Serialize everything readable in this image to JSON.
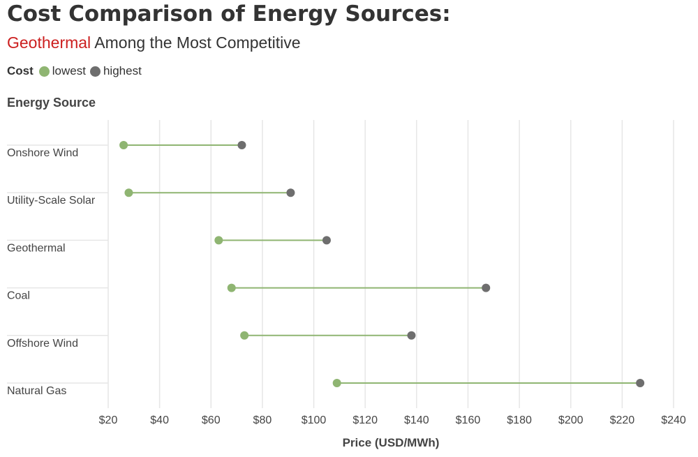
{
  "chart_data": {
    "type": "dumbbell",
    "title": "Cost Comparison of Energy Sources:",
    "subtitle_highlight": "Geothermal",
    "subtitle_rest": " Among the Most Competitive",
    "legend": {
      "title": "Cost",
      "entries": [
        {
          "label": "lowest",
          "color": "#8fb572"
        },
        {
          "label": "highest",
          "color": "#6e6e6e"
        }
      ]
    },
    "ylabel": "Energy Source",
    "xlabel": "Price (USD/MWh)",
    "xlim": [
      20,
      240
    ],
    "x_ticks": [
      20,
      40,
      60,
      80,
      100,
      120,
      140,
      160,
      180,
      200,
      220,
      240
    ],
    "x_tick_labels": [
      "$20",
      "$40",
      "$60",
      "$80",
      "$100",
      "$120",
      "$140",
      "$160",
      "$180",
      "$200",
      "$220",
      "$240"
    ],
    "categories": [
      "Onshore Wind",
      "Utility-Scale Solar",
      "Geothermal",
      "Coal",
      "Offshore Wind",
      "Natural Gas"
    ],
    "series": [
      {
        "name": "lowest",
        "values": [
          26,
          28,
          63,
          68,
          73,
          109
        ]
      },
      {
        "name": "highest",
        "values": [
          72,
          91,
          105,
          167,
          138,
          227
        ]
      }
    ],
    "colors": {
      "lowest": "#8fb572",
      "highest": "#6e6e6e",
      "line": "#8fb572",
      "grid": "#e6e6e6",
      "highlight": "#cc1f1f"
    },
    "grid": true
  }
}
